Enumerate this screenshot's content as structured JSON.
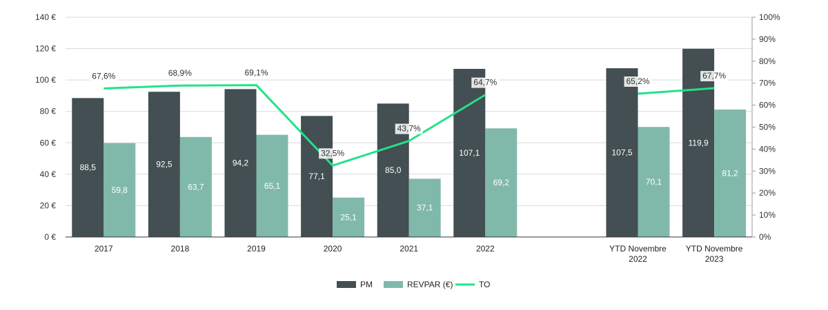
{
  "chart_data": {
    "type": "bar",
    "categories": [
      "2017",
      "2018",
      "2019",
      "2020",
      "2021",
      "2022",
      "",
      "YTD Novembre 2022",
      "YTD Novembre 2023"
    ],
    "category_lines": [
      [
        "2017"
      ],
      [
        "2018"
      ],
      [
        "2019"
      ],
      [
        "2020"
      ],
      [
        "2021"
      ],
      [
        "2022"
      ],
      [],
      [
        "YTD Novembre",
        "2022"
      ],
      [
        "YTD Novembre",
        "2023"
      ]
    ],
    "series": [
      {
        "name": "PM",
        "kind": "bar",
        "axis": "left",
        "color": "#434f52",
        "values": [
          88.5,
          92.5,
          94.2,
          77.1,
          85.0,
          107.1,
          null,
          107.5,
          119.9
        ],
        "labels": [
          "88,5",
          "92,5",
          "94,2",
          "77,1",
          "85,0",
          "107,1",
          "",
          "107,5",
          "119,9"
        ]
      },
      {
        "name": "REVPAR (€)",
        "kind": "bar",
        "axis": "left",
        "color": "#80b9aa",
        "values": [
          59.8,
          63.7,
          65.1,
          25.1,
          37.1,
          69.2,
          null,
          70.1,
          81.2
        ],
        "labels": [
          "59,8",
          "63,7",
          "65,1",
          "25,1",
          "37,1",
          "69,2",
          "",
          "70,1",
          "81,2"
        ]
      },
      {
        "name": "TO",
        "kind": "line",
        "axis": "right",
        "color": "#22e28a",
        "segments": [
          [
            0,
            1,
            2,
            3,
            4,
            5
          ],
          [
            7,
            8
          ]
        ],
        "values": [
          67.6,
          68.9,
          69.1,
          32.5,
          43.7,
          64.7,
          null,
          65.2,
          67.7
        ],
        "labels": [
          "67,6%",
          "68,9%",
          "69,1%",
          "32,5%",
          "43,7%",
          "64,7%",
          "",
          "65,2%",
          "67,7%"
        ]
      }
    ],
    "y_left": {
      "ylim": [
        0,
        140
      ],
      "ticks": [
        0,
        20,
        40,
        60,
        80,
        100,
        120,
        140
      ],
      "tick_labels": [
        "0 €",
        "20 €",
        "40 €",
        "60 €",
        "80 €",
        "100 €",
        "120 €",
        "140 €"
      ]
    },
    "y_right": {
      "ylim": [
        0,
        100
      ],
      "ticks": [
        0,
        10,
        20,
        30,
        40,
        50,
        60,
        70,
        80,
        90,
        100
      ],
      "tick_labels": [
        "0%",
        "10%",
        "20%",
        "30%",
        "40%",
        "50%",
        "60%",
        "70%",
        "80%",
        "90%",
        "100%"
      ]
    },
    "grid": true,
    "legend_position": "bottom-center",
    "title": "",
    "xlabel": "",
    "ylabel": ""
  }
}
